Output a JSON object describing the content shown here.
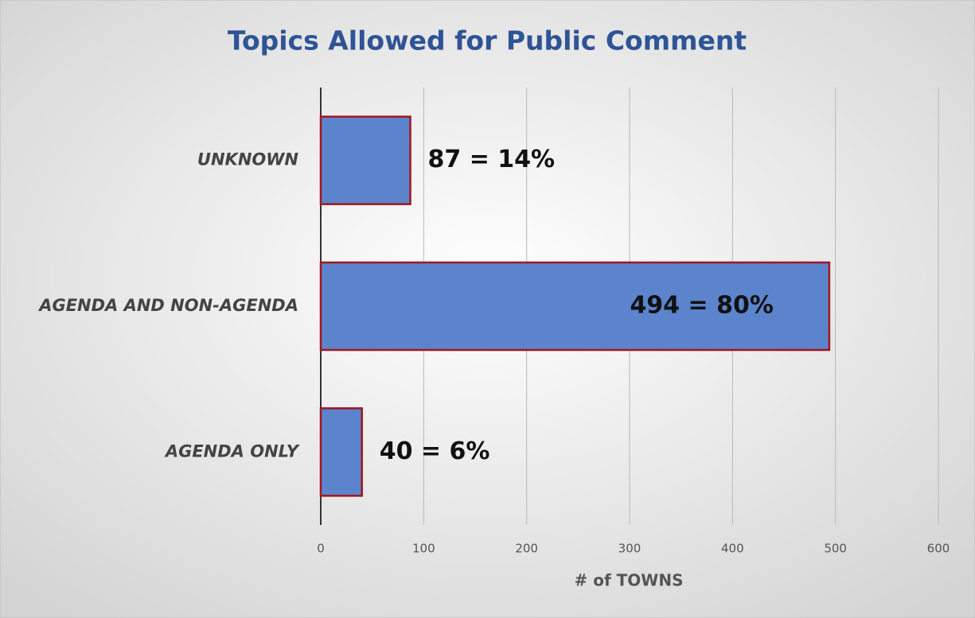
{
  "chart_data": {
    "type": "barh",
    "title": "Topics Allowed for Public Comment",
    "categories": [
      "UNKNOWN",
      "AGENDA AND NON-AGENDA",
      "AGENDA ONLY"
    ],
    "values": [
      87,
      494,
      40
    ],
    "value_labels": [
      "87 = 14%",
      "494 = 80%",
      "40 = 6%"
    ],
    "color": "#5b84cd",
    "edge_color": "#a3161f",
    "xlabel": "# of TOWNS",
    "xlim": [
      0,
      600
    ],
    "xticks": [
      0,
      100,
      200,
      300,
      400,
      500,
      600
    ],
    "grid": true
  }
}
